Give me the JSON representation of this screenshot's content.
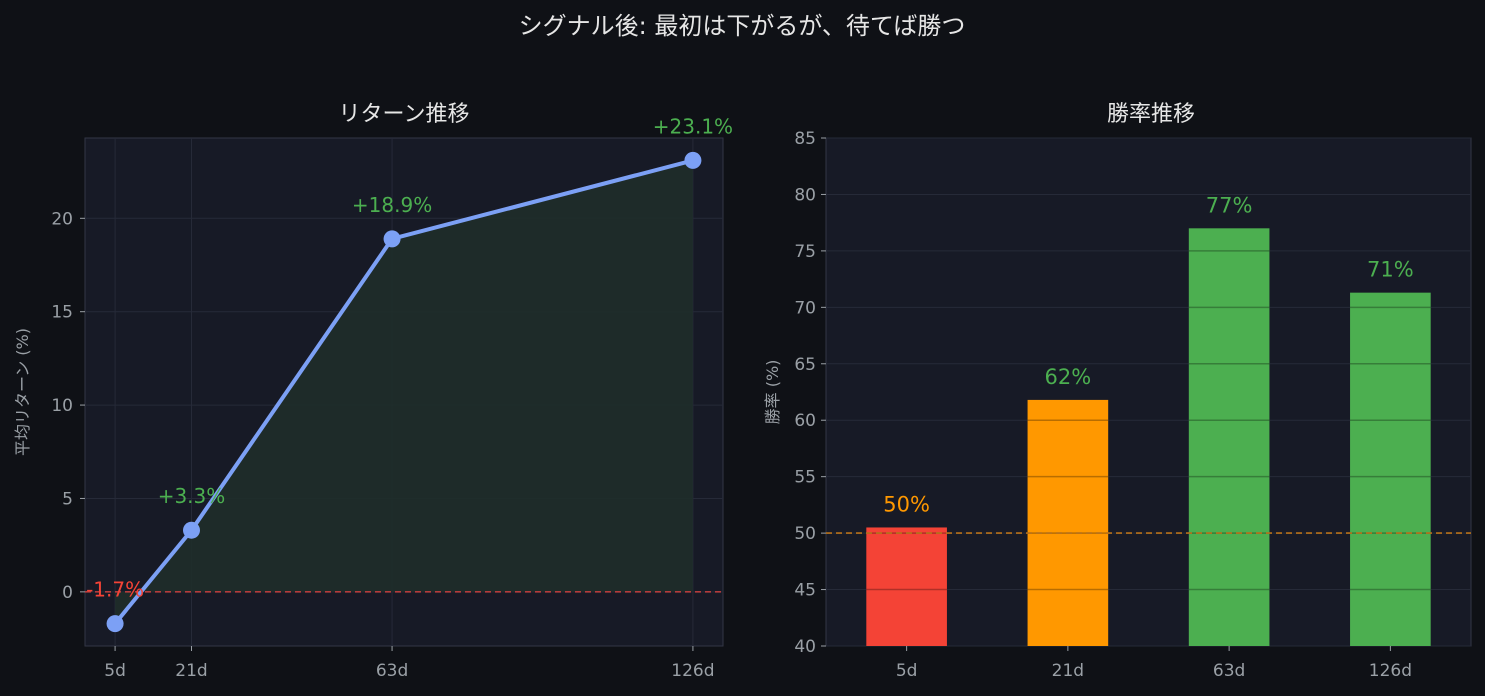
{
  "suptitle": "シグナル後: 最初は下がるが、待てば勝つ",
  "colors": {
    "figure_bg": "#0f1116",
    "axes_bg": "#171a26",
    "axes_border": "#333645",
    "grid": "#262a38",
    "text_main": "#e6e6e6",
    "text_tick": "#9aa0a6",
    "line": "#7ca0f5",
    "fill": "#1f2d2a",
    "positive": "#4caf50",
    "negative": "#f44336",
    "warning": "#ff9800",
    "zero_ref": "#b43c3c",
    "half_ref": "#b8721a"
  },
  "chart_data": [
    {
      "type": "line",
      "title": "リターン推移",
      "xlabel": "",
      "ylabel": "平均リターン (%)",
      "x": [
        5,
        21,
        63,
        126
      ],
      "x_tick_labels": [
        "5d",
        "21d",
        "63d",
        "126d"
      ],
      "values": [
        -1.7,
        3.3,
        18.9,
        23.1
      ],
      "data_labels": [
        "-1.7%",
        "+3.3%",
        "+18.9%",
        "+23.1%"
      ],
      "xlim": [
        -1.3,
        132.3
      ],
      "ylim": [
        -2.9,
        24.3
      ],
      "yticks": [
        0,
        5,
        10,
        15,
        20
      ],
      "reference_line": {
        "y": 0,
        "style": "dashed"
      },
      "area_fill": true,
      "grid": true
    },
    {
      "type": "bar",
      "title": "勝率推移",
      "xlabel": "",
      "ylabel": "勝率 (%)",
      "categories": [
        "5d",
        "21d",
        "63d",
        "126d"
      ],
      "values": [
        50.5,
        61.8,
        77.0,
        71.3
      ],
      "data_labels": [
        "50%",
        "62%",
        "77%",
        "71%"
      ],
      "bar_colors": [
        "#f44336",
        "#ff9800",
        "#4caf50",
        "#4caf50"
      ],
      "label_colors": [
        "#ff9800",
        "#4caf50",
        "#4caf50",
        "#4caf50"
      ],
      "ylim": [
        40,
        85
      ],
      "yticks": [
        40,
        45,
        50,
        55,
        60,
        65,
        70,
        75,
        80,
        85
      ],
      "reference_line": {
        "y": 50,
        "style": "dashed"
      },
      "grid": true
    }
  ]
}
